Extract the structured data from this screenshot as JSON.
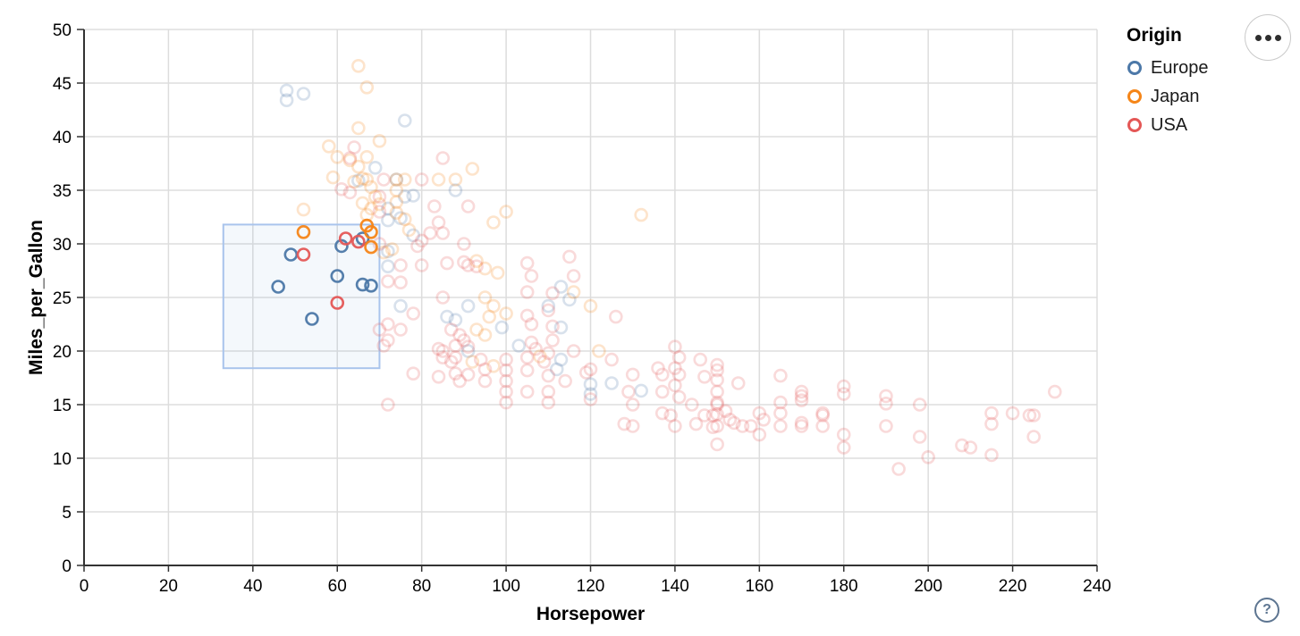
{
  "controls": {
    "menu_icon": "more-options",
    "help_label": "?"
  },
  "chart_data": {
    "type": "scatter",
    "title": "",
    "xlabel": "Horsepower",
    "ylabel": "Miles_per_Gallon",
    "xlim": [
      0,
      240
    ],
    "ylim": [
      0,
      50
    ],
    "xticks": [
      0,
      20,
      40,
      60,
      80,
      100,
      120,
      140,
      160,
      180,
      200,
      220,
      240
    ],
    "yticks": [
      0,
      5,
      10,
      15,
      20,
      25,
      30,
      35,
      40,
      45,
      50
    ],
    "grid": true,
    "faded_opacity": 0.22,
    "selected_opacity": 0.95,
    "brush_selection": {
      "x": [
        33,
        70
      ],
      "y": [
        18.4,
        31.8
      ],
      "fill": "#6a96d8",
      "fill_opacity": 0.07,
      "stroke": "#a9c4ec"
    },
    "legend": {
      "title": "Origin",
      "position": "top-right",
      "entries": [
        {
          "label": "Europe",
          "color": "#4c78a8"
        },
        {
          "label": "Japan",
          "color": "#f58518"
        },
        {
          "label": "USA",
          "color": "#e45756"
        }
      ]
    },
    "series": [
      {
        "name": "Europe",
        "color": "#4c78a8",
        "selected": [
          [
            49,
            29
          ],
          [
            46,
            26
          ],
          [
            60,
            27
          ],
          [
            54,
            23
          ],
          [
            61,
            29.8
          ],
          [
            66,
            30.5
          ],
          [
            66,
            26.2
          ],
          [
            68,
            26.1
          ]
        ],
        "points": [
          [
            48,
            44.3
          ],
          [
            48,
            43.4
          ],
          [
            52,
            44
          ],
          [
            76,
            41.5
          ],
          [
            69,
            37.1
          ],
          [
            65,
            35.9
          ],
          [
            74,
            36
          ],
          [
            88,
            35
          ],
          [
            78,
            34.5
          ],
          [
            76,
            34.4
          ],
          [
            72,
            33.3
          ],
          [
            72,
            32.2
          ],
          [
            75,
            32.4
          ],
          [
            78,
            30.8
          ],
          [
            72,
            29.3
          ],
          [
            72,
            27.9
          ],
          [
            113,
            26
          ],
          [
            115,
            24.8
          ],
          [
            110,
            24.2
          ],
          [
            91,
            24.2
          ],
          [
            75,
            24.2
          ],
          [
            86,
            23.2
          ],
          [
            88,
            22.9
          ],
          [
            99,
            22.2
          ],
          [
            103,
            20.5
          ],
          [
            91,
            20
          ],
          [
            113,
            19.2
          ],
          [
            112,
            18.3
          ],
          [
            113,
            22.2
          ],
          [
            120,
            16.9
          ],
          [
            120,
            16
          ],
          [
            125,
            17
          ],
          [
            132,
            16.3
          ]
        ]
      },
      {
        "name": "Japan",
        "color": "#f58518",
        "selected": [
          [
            52,
            31.1
          ],
          [
            67,
            31.7
          ],
          [
            68,
            31.1
          ],
          [
            68,
            29.7
          ]
        ],
        "points": [
          [
            65,
            46.6
          ],
          [
            67,
            44.6
          ],
          [
            65,
            40.8
          ],
          [
            70,
            39.6
          ],
          [
            58,
            39.1
          ],
          [
            60,
            38.1
          ],
          [
            63,
            37.8
          ],
          [
            67,
            38.1
          ],
          [
            65,
            37.2
          ],
          [
            66,
            36.1
          ],
          [
            67,
            36
          ],
          [
            59,
            36.2
          ],
          [
            76,
            36
          ],
          [
            74,
            36
          ],
          [
            84,
            36
          ],
          [
            88,
            36
          ],
          [
            92,
            37
          ],
          [
            64,
            35.8
          ],
          [
            68,
            35.3
          ],
          [
            74,
            35
          ],
          [
            52,
            33.2
          ],
          [
            66,
            33.8
          ],
          [
            69,
            34.4
          ],
          [
            68,
            33.3
          ],
          [
            67,
            32.7
          ],
          [
            70,
            33.7
          ],
          [
            74,
            33.9
          ],
          [
            74,
            32.9
          ],
          [
            76,
            32.3
          ],
          [
            77,
            31.3
          ],
          [
            97,
            32
          ],
          [
            100,
            33
          ],
          [
            132,
            32.7
          ],
          [
            73,
            29.5
          ],
          [
            71,
            29.2
          ],
          [
            93,
            28.4
          ],
          [
            95,
            27.7
          ],
          [
            98,
            27.3
          ],
          [
            93,
            22
          ],
          [
            95,
            21.5
          ],
          [
            96,
            23.2
          ],
          [
            95,
            25
          ],
          [
            97,
            24.2
          ],
          [
            100,
            23.5
          ],
          [
            92,
            19
          ],
          [
            97,
            18.6
          ],
          [
            108,
            19.5
          ],
          [
            122,
            20
          ],
          [
            120,
            24.2
          ],
          [
            116,
            25.5
          ]
        ]
      },
      {
        "name": "USA",
        "color": "#e45756",
        "selected": [
          [
            52,
            29
          ],
          [
            62,
            30.5
          ],
          [
            65,
            30.2
          ],
          [
            60,
            24.5
          ]
        ],
        "points": [
          [
            64,
            39
          ],
          [
            63,
            38
          ],
          [
            85,
            38
          ],
          [
            80,
            36
          ],
          [
            71,
            36
          ],
          [
            61,
            35.1
          ],
          [
            63,
            34.8
          ],
          [
            70,
            34.4
          ],
          [
            70,
            33
          ],
          [
            83,
            33.5
          ],
          [
            91,
            33.5
          ],
          [
            84,
            32
          ],
          [
            82,
            31
          ],
          [
            85,
            31
          ],
          [
            80,
            30.3
          ],
          [
            79,
            29.8
          ],
          [
            70,
            30
          ],
          [
            90,
            30
          ],
          [
            75,
            28
          ],
          [
            80,
            28
          ],
          [
            86,
            28.2
          ],
          [
            90,
            28.3
          ],
          [
            91,
            28
          ],
          [
            93,
            27.9
          ],
          [
            105,
            28.2
          ],
          [
            106,
            27
          ],
          [
            115,
            28.8
          ],
          [
            116,
            27
          ],
          [
            111,
            25.4
          ],
          [
            110,
            23.8
          ],
          [
            85,
            25
          ],
          [
            105,
            25.5
          ],
          [
            72,
            26.5
          ],
          [
            75,
            26.4
          ],
          [
            78,
            23.5
          ],
          [
            72,
            22.5
          ],
          [
            75,
            22
          ],
          [
            72,
            21
          ],
          [
            70,
            22
          ],
          [
            71,
            20.5
          ],
          [
            87,
            22
          ],
          [
            89,
            21.5
          ],
          [
            90,
            21
          ],
          [
            88,
            20.5
          ],
          [
            105,
            23.3
          ],
          [
            106,
            22.5
          ],
          [
            106,
            20.8
          ],
          [
            107,
            20.2
          ],
          [
            111,
            22.3
          ],
          [
            111,
            21
          ],
          [
            84,
            20.2
          ],
          [
            85,
            20
          ],
          [
            88,
            19.4
          ],
          [
            85,
            19.4
          ],
          [
            87,
            19
          ],
          [
            91,
            20.4
          ],
          [
            116,
            20
          ],
          [
            120,
            18.3
          ],
          [
            119,
            18
          ],
          [
            125,
            19.2
          ],
          [
            126,
            23.2
          ],
          [
            78,
            17.9
          ],
          [
            84,
            17.6
          ],
          [
            88,
            17.9
          ],
          [
            89,
            17.2
          ],
          [
            91,
            17.8
          ],
          [
            94,
            19.2
          ],
          [
            95,
            18.3
          ],
          [
            95,
            17.2
          ],
          [
            100,
            19.2
          ],
          [
            100,
            18.2
          ],
          [
            100,
            17.2
          ],
          [
            100,
            16.2
          ],
          [
            100,
            15.2
          ],
          [
            105,
            19.4
          ],
          [
            105,
            18.2
          ],
          [
            105,
            16.2
          ],
          [
            110,
            19.8
          ],
          [
            109,
            19
          ],
          [
            110,
            17.7
          ],
          [
            110,
            16.2
          ],
          [
            110,
            15.2
          ],
          [
            114,
            17.2
          ],
          [
            72,
            15
          ],
          [
            120,
            15.5
          ],
          [
            128,
            13.2
          ],
          [
            130,
            13
          ],
          [
            129,
            16.2
          ],
          [
            130,
            15
          ],
          [
            130,
            17.8
          ],
          [
            136,
            18.4
          ],
          [
            137,
            17.8
          ],
          [
            137,
            16.2
          ],
          [
            137,
            14.2
          ],
          [
            139,
            14
          ],
          [
            140,
            20.4
          ],
          [
            141,
            19.4
          ],
          [
            140,
            18.4
          ],
          [
            141,
            17.8
          ],
          [
            140,
            16.8
          ],
          [
            141,
            15.7
          ],
          [
            140,
            13
          ],
          [
            144,
            15
          ],
          [
            145,
            13.2
          ],
          [
            146,
            19.2
          ],
          [
            147,
            17.6
          ],
          [
            147,
            14
          ],
          [
            150,
            18.7
          ],
          [
            150,
            18.2
          ],
          [
            150,
            17.3
          ],
          [
            150,
            16.2
          ],
          [
            150,
            15.2
          ],
          [
            150,
            15
          ],
          [
            150,
            14.1
          ],
          [
            149,
            14
          ],
          [
            150,
            13
          ],
          [
            149,
            12.9
          ],
          [
            150,
            11.3
          ],
          [
            152,
            14.4
          ],
          [
            153,
            13.6
          ],
          [
            154,
            13.3
          ],
          [
            156,
            13
          ],
          [
            158,
            13
          ],
          [
            155,
            17
          ],
          [
            160,
            14.2
          ],
          [
            161,
            13.6
          ],
          [
            160,
            12.2
          ],
          [
            165,
            17.7
          ],
          [
            165,
            15.2
          ],
          [
            165,
            14.2
          ],
          [
            165,
            13
          ],
          [
            170,
            16.2
          ],
          [
            170,
            15.8
          ],
          [
            170,
            15.4
          ],
          [
            170,
            13.3
          ],
          [
            170,
            13
          ],
          [
            175,
            14.2
          ],
          [
            175,
            14
          ],
          [
            175,
            13
          ],
          [
            180,
            16.7
          ],
          [
            180,
            16
          ],
          [
            180,
            12.2
          ],
          [
            180,
            11
          ],
          [
            190,
            15.8
          ],
          [
            190,
            15.1
          ],
          [
            190,
            13
          ],
          [
            193,
            9
          ],
          [
            198,
            15
          ],
          [
            198,
            12
          ],
          [
            200,
            10.1
          ],
          [
            208,
            11.2
          ],
          [
            210,
            11
          ],
          [
            215,
            14.2
          ],
          [
            215,
            13.2
          ],
          [
            215,
            10.3
          ],
          [
            220,
            14.2
          ],
          [
            225,
            14
          ],
          [
            224,
            14
          ],
          [
            225,
            12
          ],
          [
            230,
            16.2
          ]
        ]
      }
    ]
  }
}
